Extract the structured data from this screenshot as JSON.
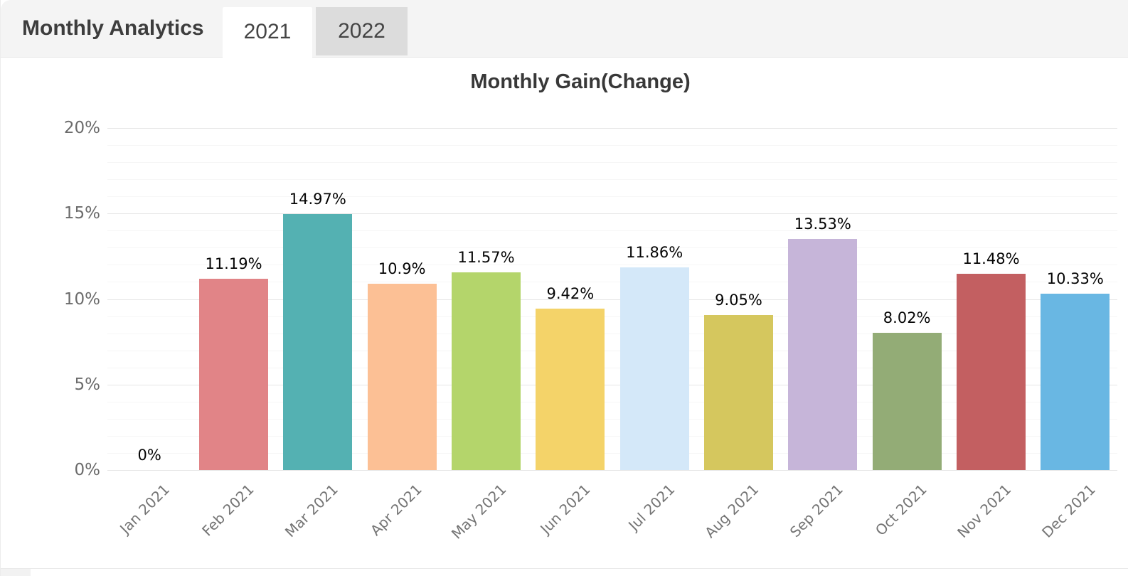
{
  "header": {
    "title": "Monthly Analytics",
    "tabs": [
      {
        "label": "2021",
        "active": true
      },
      {
        "label": "2022",
        "active": false
      }
    ]
  },
  "chart_data": {
    "type": "bar",
    "title": "Monthly Gain(Change)",
    "categories": [
      "Jan 2021",
      "Feb 2021",
      "Mar 2021",
      "Apr 2021",
      "May 2021",
      "Jun 2021",
      "Jul 2021",
      "Aug 2021",
      "Sep 2021",
      "Oct 2021",
      "Nov 2021",
      "Dec 2021"
    ],
    "values": [
      0,
      11.19,
      14.97,
      10.9,
      11.57,
      9.42,
      11.86,
      9.05,
      13.53,
      8.02,
      11.48,
      10.33
    ],
    "value_labels": [
      "0%",
      "11.19%",
      "14.97%",
      "10.9%",
      "11.57%",
      "9.42%",
      "11.86%",
      "9.05%",
      "13.53%",
      "8.02%",
      "11.48%",
      "10.33%"
    ],
    "bar_colors": [
      null,
      "#e18487",
      "#54b1b2",
      "#fcc095",
      "#b4d56b",
      "#f4d369",
      "#d4e8f9",
      "#d5c75e",
      "#c6b5d9",
      "#93ac76",
      "#c35f61",
      "#69b7e3"
    ],
    "xlabel": "",
    "ylabel": "",
    "ylim": [
      0,
      20
    ],
    "y_ticks": [
      {
        "label": "0%",
        "value": 0
      },
      {
        "label": "5%",
        "value": 5
      },
      {
        "label": "10%",
        "value": 10
      },
      {
        "label": "15%",
        "value": 15
      },
      {
        "label": "20%",
        "value": 20
      }
    ],
    "grid": {
      "major_step_pct": 5,
      "minor_step_pct": 1,
      "orientation": "horizontal"
    },
    "legend": "none",
    "x_label_rotation_deg": -45
  },
  "colors": {
    "header_bg": "#f4f4f4",
    "tab_active_bg": "#ffffff",
    "tab_inactive_bg": "#dcdcdc",
    "grid_major": "#e6e6e6",
    "grid_minor": "#f6f6f6",
    "axis_text": "#6b6b6b",
    "x_axis_text": "#747474",
    "value_text": "#050505"
  }
}
